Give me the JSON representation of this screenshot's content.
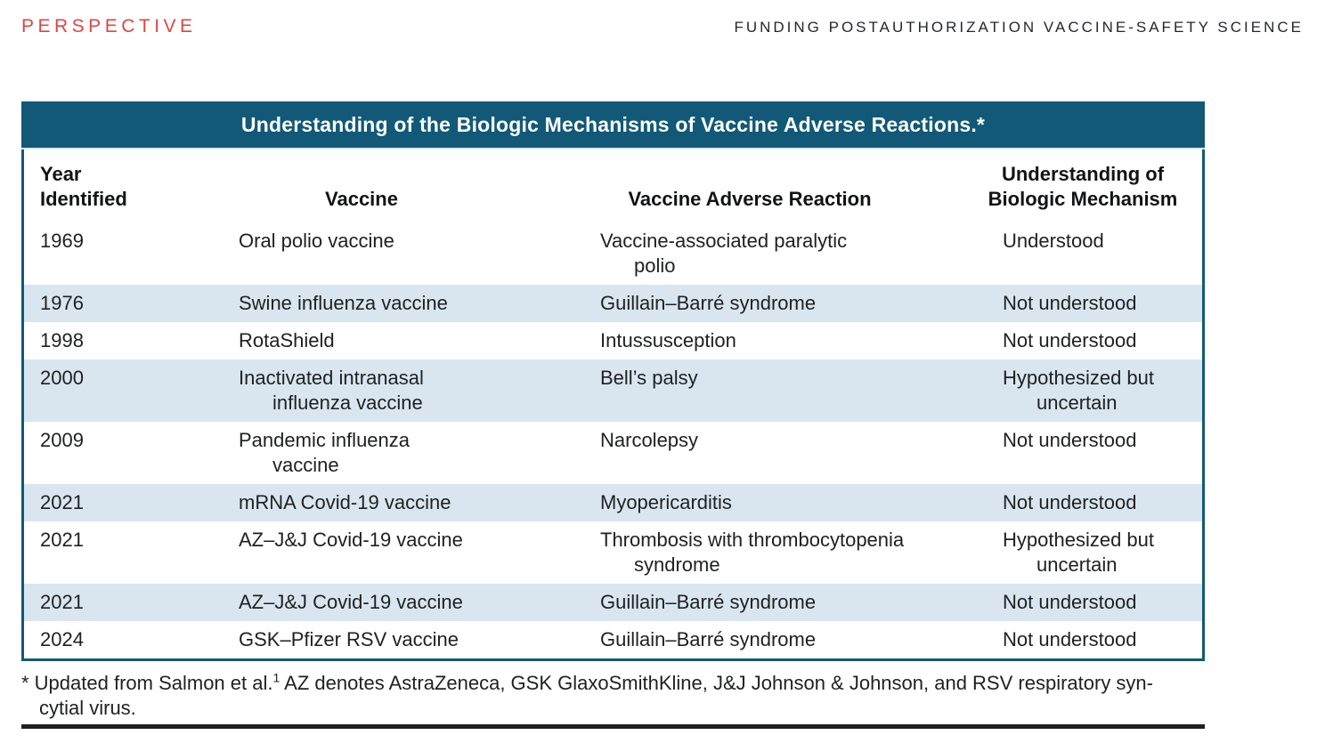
{
  "masthead": {
    "kicker": "PERSPECTIVE",
    "running_head": "FUNDING POSTAUTHORIZATION VACCINE-SAFETY SCIENCE"
  },
  "table": {
    "title": "Understanding of the Biologic Mechanisms of Vaccine Adverse Reactions.*",
    "headers": {
      "year": "Year\nIdentified",
      "vaccine": "Vaccine",
      "reaction": "Vaccine Adverse Reaction",
      "understanding": "Understanding of\nBiologic Mechanism"
    },
    "rows": [
      {
        "year": "1969",
        "vaccine": "Oral polio vaccine",
        "reaction": "Vaccine-associated paralytic\npolio",
        "understanding": "Understood"
      },
      {
        "year": "1976",
        "vaccine": "Swine influenza vaccine",
        "reaction": "Guillain–Barré syndrome",
        "understanding": "Not understood"
      },
      {
        "year": "1998",
        "vaccine": "RotaShield",
        "reaction": "Intussusception",
        "understanding": "Not understood"
      },
      {
        "year": "2000",
        "vaccine": "Inactivated intranasal\ninfluenza vaccine",
        "reaction": "Bell’s palsy",
        "understanding": "Hypothesized but\nuncertain"
      },
      {
        "year": "2009",
        "vaccine": "Pandemic influenza\nvaccine",
        "reaction": "Narcolepsy",
        "understanding": "Not understood"
      },
      {
        "year": "2021",
        "vaccine": "mRNA Covid-19 vaccine",
        "reaction": "Myopericarditis",
        "understanding": "Not understood"
      },
      {
        "year": "2021",
        "vaccine": "AZ–J&J Covid-19 vaccine",
        "reaction": "Thrombosis with thrombocytopenia\nsyndrome",
        "understanding": "Hypothesized but\nuncertain"
      },
      {
        "year": "2021",
        "vaccine": "AZ–J&J Covid-19 vaccine",
        "reaction": "Guillain–Barré syndrome",
        "understanding": "Not understood"
      },
      {
        "year": "2024",
        "vaccine": "GSK–Pfizer RSV vaccine",
        "reaction": "Guillain–Barré syndrome",
        "understanding": "Not understood"
      }
    ],
    "colors": {
      "header_teal": "#125977",
      "row_blue": "#d9e6f0",
      "kicker_red": "#df4545",
      "rule_black": "#221e1f"
    }
  },
  "footnote": {
    "line1a": "* Updated from Salmon et al.",
    "reference_mark": "1",
    "line1b": " AZ denotes AstraZeneca, GSK GlaxoSmithKline, J&J Johnson & Johnson, and RSV respiratory syn-",
    "line2": "cytial virus."
  }
}
